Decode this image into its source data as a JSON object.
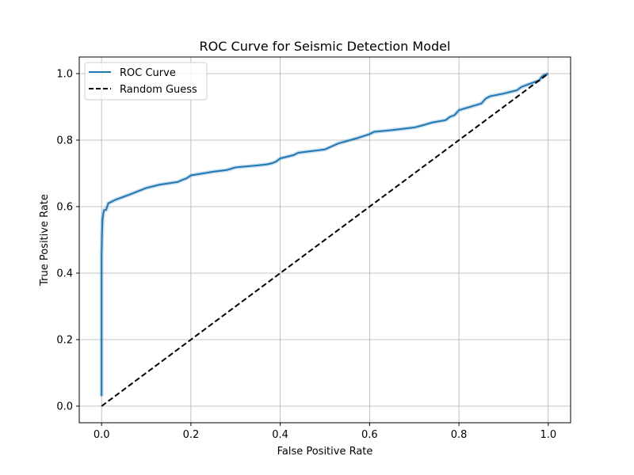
{
  "chart_data": {
    "type": "line",
    "title": "ROC Curve for Seismic Detection Model",
    "xlabel": "False Positive Rate",
    "ylabel": "True Positive Rate",
    "xlim": [
      -0.05,
      1.05
    ],
    "ylim": [
      -0.05,
      1.05
    ],
    "xticks": [
      0.0,
      0.2,
      0.4,
      0.6,
      0.8,
      1.0
    ],
    "yticks": [
      0.0,
      0.2,
      0.4,
      0.6,
      0.8,
      1.0
    ],
    "xtick_labels": [
      "0.0",
      "0.2",
      "0.4",
      "0.6",
      "0.8",
      "1.0"
    ],
    "ytick_labels": [
      "0.0",
      "0.2",
      "0.4",
      "0.6",
      "0.8",
      "1.0"
    ],
    "grid": true,
    "legend_position": "top-left",
    "series": [
      {
        "name": "ROC Curve",
        "style": "solid",
        "color": "#1f77b4",
        "x": [
          0.0,
          0.0,
          0.001,
          0.002,
          0.004,
          0.006,
          0.01,
          0.015,
          0.03,
          0.05,
          0.07,
          0.1,
          0.13,
          0.17,
          0.18,
          0.19,
          0.2,
          0.25,
          0.28,
          0.3,
          0.35,
          0.37,
          0.38,
          0.39,
          0.4,
          0.43,
          0.44,
          0.5,
          0.53,
          0.57,
          0.6,
          0.61,
          0.65,
          0.7,
          0.72,
          0.74,
          0.77,
          0.78,
          0.79,
          0.8,
          0.85,
          0.86,
          0.87,
          0.9,
          0.93,
          0.94,
          0.96,
          0.98,
          0.985,
          0.99,
          1.0
        ],
        "y": [
          0.03,
          0.45,
          0.52,
          0.56,
          0.58,
          0.59,
          0.59,
          0.61,
          0.62,
          0.63,
          0.64,
          0.656,
          0.666,
          0.674,
          0.68,
          0.685,
          0.694,
          0.705,
          0.71,
          0.718,
          0.724,
          0.727,
          0.73,
          0.735,
          0.745,
          0.755,
          0.762,
          0.772,
          0.79,
          0.805,
          0.818,
          0.825,
          0.83,
          0.838,
          0.845,
          0.853,
          0.86,
          0.87,
          0.875,
          0.89,
          0.91,
          0.925,
          0.932,
          0.94,
          0.95,
          0.96,
          0.97,
          0.98,
          0.99,
          0.995,
          1.0
        ]
      },
      {
        "name": "Random Guess",
        "style": "dashed",
        "color": "#000000",
        "x": [
          0.0,
          1.0
        ],
        "y": [
          0.0,
          1.0
        ]
      }
    ]
  }
}
